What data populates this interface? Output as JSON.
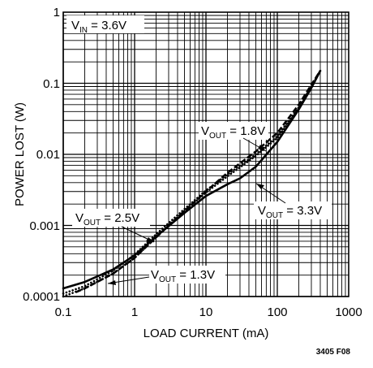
{
  "chart_data": {
    "type": "line",
    "xscale": "log",
    "yscale": "log",
    "xlim": [
      0.1,
      1000
    ],
    "ylim": [
      0.0001,
      1
    ],
    "xlabel": "LOAD CURRENT (mA)",
    "ylabel": "POWER LOST (W)",
    "x_ticks": [
      "0.1",
      "1",
      "10",
      "100",
      "1000"
    ],
    "y_ticks": [
      "0.0001",
      "0.001",
      "0.01",
      "0.1",
      "1"
    ],
    "grid": true,
    "condition": {
      "main": "V",
      "sub": "IN",
      "rest": " = 3.6V"
    },
    "figure_id": "3405 F08",
    "series": [
      {
        "id": "vout_3v3",
        "label": {
          "main": "V",
          "sub": "OUT",
          "rest": " = 3.3V"
        },
        "style": "solid",
        "x": [
          0.1,
          0.2,
          0.5,
          1,
          2,
          5,
          10,
          20,
          30,
          50,
          100,
          200,
          300,
          400
        ],
        "y": [
          0.00013,
          0.00016,
          0.00024,
          0.00038,
          0.0007,
          0.0015,
          0.0026,
          0.0038,
          0.0046,
          0.0067,
          0.015,
          0.043,
          0.086,
          0.15
        ]
      },
      {
        "id": "vout_1v8",
        "label": {
          "main": "V",
          "sub": "OUT",
          "rest": " = 1.8V"
        },
        "style": "dashed",
        "x": [
          0.15,
          0.2,
          0.5,
          1,
          2,
          5,
          10,
          20,
          50,
          100,
          200,
          300,
          400
        ],
        "y": [
          0.000115,
          0.00013,
          0.00021,
          0.00035,
          0.00068,
          0.0016,
          0.003,
          0.0055,
          0.011,
          0.02,
          0.05,
          0.095,
          0.15
        ]
      },
      {
        "id": "vout_2v5",
        "label": {
          "main": "V",
          "sub": "OUT",
          "rest": " = 2.5V"
        },
        "style": "dotted",
        "x": [
          0.1,
          0.2,
          0.5,
          1,
          2,
          5,
          10,
          20,
          50,
          100,
          200,
          300,
          400
        ],
        "y": [
          0.00011,
          0.00014,
          0.00023,
          0.00039,
          0.00075,
          0.0017,
          0.0031,
          0.0052,
          0.01,
          0.018,
          0.046,
          0.09,
          0.15
        ]
      },
      {
        "id": "vout_1v3",
        "label": {
          "main": "V",
          "sub": "OUT",
          "rest": " = 1.3V"
        },
        "style": "dotted",
        "x": [
          0.1,
          0.2,
          0.5,
          1,
          2,
          5,
          10,
          20,
          50,
          100,
          200,
          300,
          400
        ],
        "y": [
          0.0001,
          0.00013,
          0.00021,
          0.00035,
          0.00068,
          0.0016,
          0.0029,
          0.0049,
          0.0095,
          0.017,
          0.044,
          0.088,
          0.15
        ]
      }
    ]
  }
}
